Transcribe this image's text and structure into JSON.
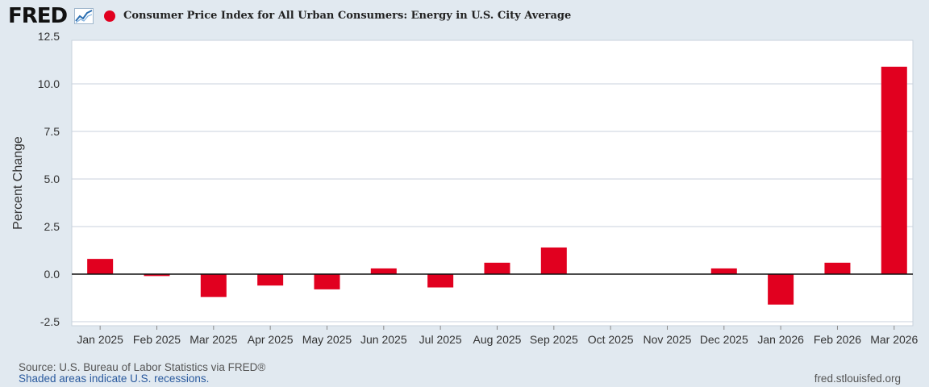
{
  "header": {
    "logo": "FRED",
    "logo_icon": "trend-line-icon",
    "series_title": "Consumer Price Index for All Urban Consumers: Energy in U.S. City Average",
    "series_color": "#e1001f"
  },
  "chart_data": {
    "type": "bar",
    "title": "Consumer Price Index for All Urban Consumers: Energy in U.S. City Average",
    "xlabel": "",
    "ylabel": "Percent Change",
    "ylim": [
      -2.5,
      12.5
    ],
    "yticks": [
      12.5,
      10.0,
      7.5,
      5.0,
      2.5,
      0.0,
      -2.5
    ],
    "ytick_labels": [
      "12.5",
      "10.0",
      "7.5",
      "5.0",
      "2.5",
      "0.0",
      "-2.5"
    ],
    "grid": true,
    "categories": [
      "Jan 2025",
      "Feb 2025",
      "Mar 2025",
      "Apr 2025",
      "May 2025",
      "Jun 2025",
      "Jul 2025",
      "Aug 2025",
      "Sep 2025",
      "Oct 2025",
      "Nov 2025",
      "Dec 2025",
      "Jan 2026",
      "Feb 2026",
      "Mar 2026"
    ],
    "values": [
      0.8,
      -0.1,
      -1.2,
      -0.6,
      -0.8,
      0.3,
      -0.7,
      0.6,
      1.4,
      null,
      null,
      0.3,
      -1.6,
      0.6,
      10.9
    ],
    "series": [
      {
        "name": "Consumer Price Index for All Urban Consumers: Energy in U.S. City Average",
        "color": "#e1001f"
      }
    ]
  },
  "footer": {
    "source": "Source: U.S. Bureau of Labor Statistics via FRED®",
    "shaded": "Shaded areas indicate U.S. recessions.",
    "site": "fred.stlouisfed.org"
  }
}
